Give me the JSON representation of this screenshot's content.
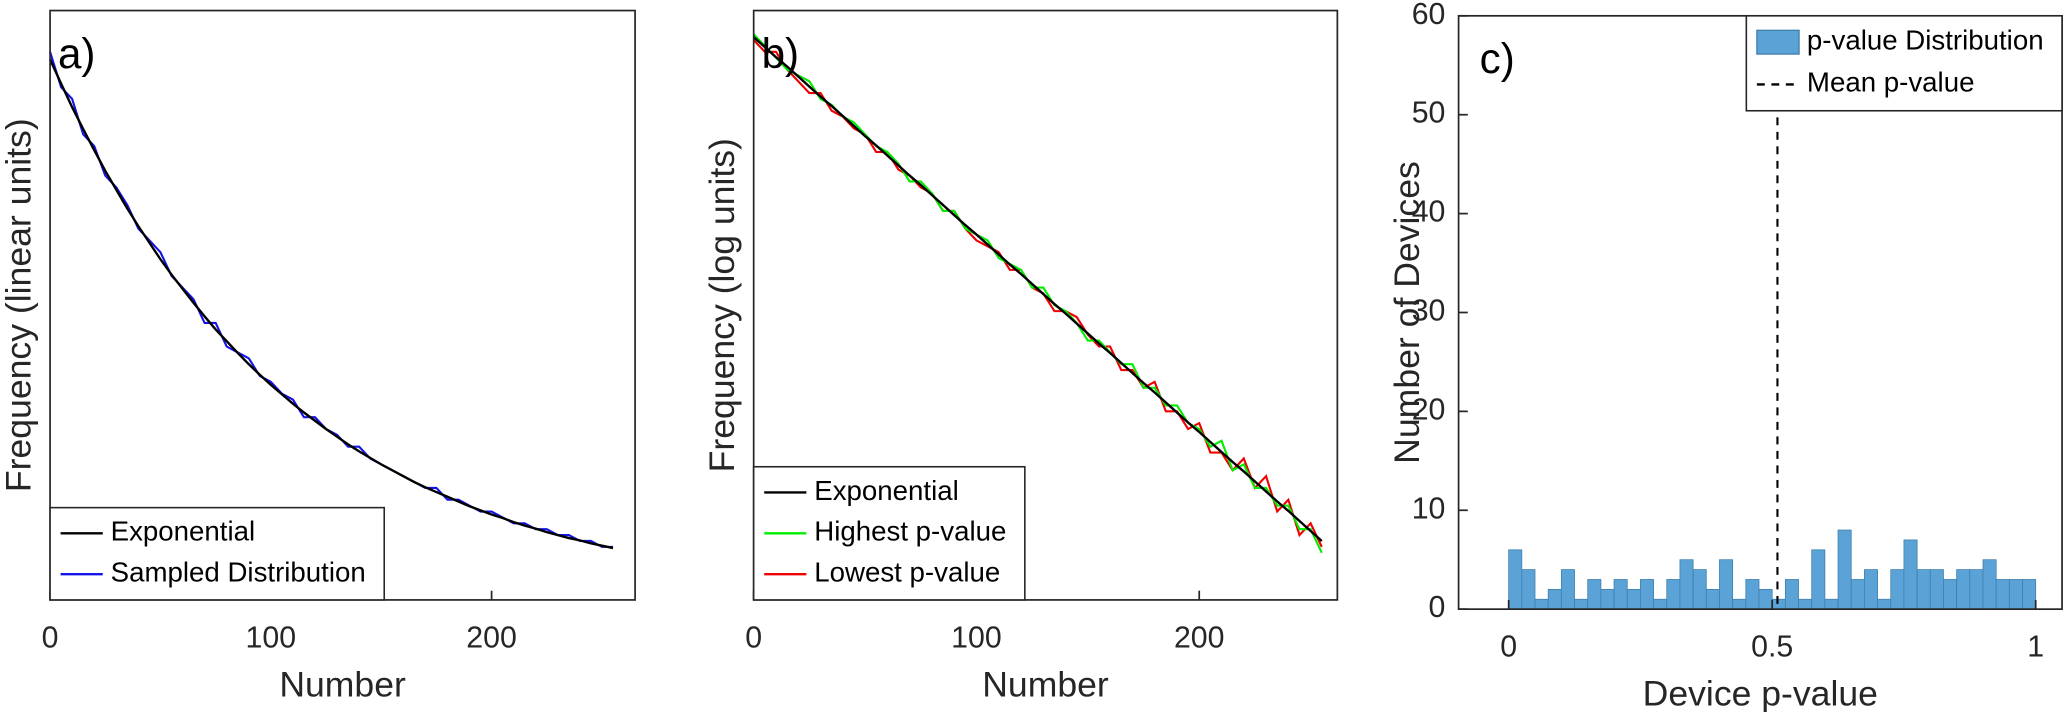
{
  "chart_data": [
    {
      "type": "line",
      "panel_label": "a)",
      "x_label": "Number",
      "y_label": "Frequency (linear units)",
      "xlim": [
        0,
        265
      ],
      "ylim": [
        0,
        1
      ],
      "xticks": [
        0,
        100,
        200
      ],
      "legend": "lower left",
      "x": [
        0,
        5,
        10,
        15,
        20,
        25,
        30,
        35,
        40,
        45,
        50,
        55,
        60,
        65,
        70,
        75,
        80,
        85,
        90,
        95,
        100,
        105,
        110,
        115,
        120,
        125,
        130,
        135,
        140,
        145,
        150,
        155,
        160,
        165,
        170,
        175,
        180,
        185,
        190,
        195,
        200,
        205,
        210,
        215,
        220,
        225,
        230,
        235,
        240,
        245,
        250,
        255
      ],
      "series": [
        {
          "name": "Exponential",
          "color": "#000000",
          "values": [
            0.917,
            0.876,
            0.836,
            0.799,
            0.763,
            0.728,
            0.696,
            0.664,
            0.634,
            0.606,
            0.578,
            0.552,
            0.528,
            0.504,
            0.481,
            0.459,
            0.439,
            0.419,
            0.4,
            0.382,
            0.365,
            0.349,
            0.333,
            0.318,
            0.304,
            0.29,
            0.277,
            0.264,
            0.252,
            0.241,
            0.23,
            0.22,
            0.21,
            0.2,
            0.191,
            0.183,
            0.175,
            0.167,
            0.159,
            0.152,
            0.145,
            0.139,
            0.132,
            0.126,
            0.121,
            0.115,
            0.11,
            0.105,
            0.101,
            0.096,
            0.092,
            0.088
          ]
        },
        {
          "name": "Sampled Distribution",
          "color": "#1414e6",
          "values": [
            0.93,
            0.87,
            0.85,
            0.79,
            0.77,
            0.72,
            0.7,
            0.67,
            0.63,
            0.61,
            0.59,
            0.55,
            0.53,
            0.51,
            0.47,
            0.47,
            0.43,
            0.42,
            0.41,
            0.38,
            0.37,
            0.35,
            0.34,
            0.31,
            0.31,
            0.29,
            0.28,
            0.26,
            0.26,
            0.24,
            0.23,
            0.22,
            0.21,
            0.2,
            0.19,
            0.19,
            0.17,
            0.17,
            0.16,
            0.15,
            0.15,
            0.14,
            0.13,
            0.13,
            0.12,
            0.12,
            0.11,
            0.11,
            0.1,
            0.1,
            0.09,
            0.09
          ]
        }
      ]
    },
    {
      "type": "line",
      "panel_label": "b)",
      "x_label": "Number",
      "y_label": "Frequency (log units)",
      "xlim": [
        0,
        262
      ],
      "ylim": [
        0,
        1
      ],
      "xticks": [
        0,
        100,
        200
      ],
      "legend": "lower left",
      "x": [
        0,
        5,
        10,
        15,
        20,
        25,
        30,
        35,
        40,
        45,
        50,
        55,
        60,
        65,
        70,
        75,
        80,
        85,
        90,
        95,
        100,
        105,
        110,
        115,
        120,
        125,
        130,
        135,
        140,
        145,
        150,
        155,
        160,
        165,
        170,
        175,
        180,
        185,
        190,
        195,
        200,
        205,
        210,
        215,
        220,
        225,
        230,
        235,
        240,
        245,
        250,
        255
      ],
      "series": [
        {
          "name": "Exponential",
          "color": "#000000",
          "values": [
            0.955,
            0.938,
            0.921,
            0.905,
            0.888,
            0.871,
            0.854,
            0.838,
            0.821,
            0.804,
            0.787,
            0.771,
            0.754,
            0.737,
            0.72,
            0.704,
            0.687,
            0.67,
            0.653,
            0.636,
            0.62,
            0.603,
            0.586,
            0.569,
            0.553,
            0.536,
            0.519,
            0.502,
            0.486,
            0.469,
            0.452,
            0.435,
            0.419,
            0.402,
            0.385,
            0.368,
            0.352,
            0.335,
            0.318,
            0.301,
            0.285,
            0.268,
            0.251,
            0.234,
            0.218,
            0.201,
            0.184,
            0.167,
            0.151,
            0.134,
            0.117,
            0.1
          ]
        },
        {
          "name": "Highest  p-value",
          "color": "#00ee00",
          "values": [
            0.96,
            0.94,
            0.92,
            0.9,
            0.89,
            0.88,
            0.85,
            0.84,
            0.82,
            0.81,
            0.79,
            0.77,
            0.76,
            0.74,
            0.71,
            0.71,
            0.69,
            0.66,
            0.66,
            0.63,
            0.62,
            0.61,
            0.58,
            0.57,
            0.56,
            0.53,
            0.53,
            0.5,
            0.49,
            0.47,
            0.44,
            0.44,
            0.42,
            0.4,
            0.4,
            0.36,
            0.36,
            0.33,
            0.33,
            0.3,
            0.29,
            0.26,
            0.27,
            0.22,
            0.23,
            0.19,
            0.19,
            0.16,
            0.16,
            0.12,
            0.12,
            0.08
          ]
        },
        {
          "name": "Lowest  p-value",
          "color": "#ee0000",
          "values": [
            0.95,
            0.93,
            0.93,
            0.9,
            0.88,
            0.86,
            0.86,
            0.83,
            0.82,
            0.8,
            0.79,
            0.76,
            0.76,
            0.73,
            0.72,
            0.7,
            0.69,
            0.66,
            0.66,
            0.63,
            0.61,
            0.6,
            0.59,
            0.56,
            0.56,
            0.53,
            0.52,
            0.49,
            0.49,
            0.48,
            0.45,
            0.43,
            0.43,
            0.39,
            0.39,
            0.36,
            0.37,
            0.32,
            0.32,
            0.29,
            0.3,
            0.25,
            0.25,
            0.22,
            0.24,
            0.19,
            0.21,
            0.15,
            0.17,
            0.11,
            0.13,
            0.09
          ]
        }
      ]
    },
    {
      "type": "histogram",
      "panel_label": "c)",
      "x_label": "Device  p-value",
      "y_label": "Number of Devices",
      "xlim": [
        -0.095,
        1.05
      ],
      "ylim": [
        0,
        60
      ],
      "xticks": [
        0,
        0.5,
        1
      ],
      "yticks": [
        0,
        10,
        20,
        30,
        40,
        50,
        60
      ],
      "legend": "upper right",
      "bins": [
        0,
        0.025,
        0.05,
        0.075,
        0.1,
        0.125,
        0.15,
        0.175,
        0.2,
        0.225,
        0.25,
        0.275,
        0.3,
        0.325,
        0.35,
        0.375,
        0.4,
        0.425,
        0.45,
        0.475,
        0.5,
        0.525,
        0.55,
        0.575,
        0.6,
        0.625,
        0.65,
        0.675,
        0.7,
        0.725,
        0.75,
        0.775,
        0.8,
        0.825,
        0.85,
        0.875,
        0.9,
        0.925,
        0.95,
        0.975,
        1
      ],
      "series": [
        {
          "name": "p-value Distribution",
          "color": "#5ba3d6",
          "values": [
            6,
            4,
            1,
            2,
            4,
            1,
            3,
            2,
            3,
            2,
            3,
            1,
            3,
            5,
            4,
            2,
            5,
            1,
            3,
            2,
            1,
            3,
            1,
            6,
            1,
            8,
            3,
            4,
            1,
            4,
            7,
            4,
            4,
            3,
            4,
            4,
            5,
            3,
            3,
            3
          ]
        }
      ],
      "mean_line": {
        "name": "Mean  p-value",
        "value": 0.51
      }
    }
  ]
}
